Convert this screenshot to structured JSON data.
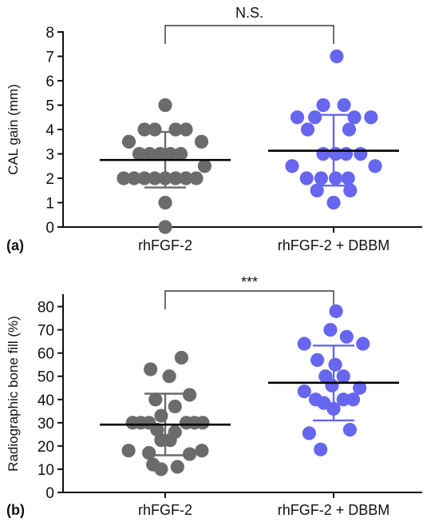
{
  "colors": {
    "rhfgf2": "#6b6b6b",
    "dbbm": "#6666ee",
    "mean": "#000000",
    "axis": "#111111"
  },
  "chart_data": [
    {
      "type": "scatter",
      "panel_label": "(a)",
      "ylabel": "CAL gain  (mm)",
      "ylim": [
        0,
        8
      ],
      "yticks": [
        0,
        1,
        2,
        3,
        4,
        5,
        6,
        7,
        8
      ],
      "categories": [
        "rhFGF-2",
        "rhFGF-2 + DBBM"
      ],
      "significance": "N.S.",
      "series": [
        {
          "category": "rhFGF-2",
          "color_key": "rhfgf2",
          "mean": 2.75,
          "sd_low": 1.62,
          "sd_high": 3.9,
          "points": [
            {
              "offset": 0,
              "y": 5
            },
            {
              "offset": -2,
              "y": 4
            },
            {
              "offset": -1,
              "y": 4
            },
            {
              "offset": 1,
              "y": 4
            },
            {
              "offset": 2,
              "y": 4
            },
            {
              "offset": -3.5,
              "y": 3.5
            },
            {
              "offset": 3.5,
              "y": 3.5
            },
            {
              "offset": -2.5,
              "y": 3
            },
            {
              "offset": -1.5,
              "y": 3
            },
            {
              "offset": -0.5,
              "y": 3
            },
            {
              "offset": 0.5,
              "y": 3
            },
            {
              "offset": 1.5,
              "y": 3
            },
            {
              "offset": 3.8,
              "y": 2.5
            },
            {
              "offset": -4,
              "y": 2
            },
            {
              "offset": -3,
              "y": 2
            },
            {
              "offset": -2,
              "y": 2
            },
            {
              "offset": -1,
              "y": 2
            },
            {
              "offset": 0,
              "y": 2
            },
            {
              "offset": 1,
              "y": 2
            },
            {
              "offset": 2,
              "y": 2
            },
            {
              "offset": 3,
              "y": 2
            },
            {
              "offset": 0,
              "y": 1
            },
            {
              "offset": 0,
              "y": 0
            }
          ]
        },
        {
          "category": "rhFGF-2 + DBBM",
          "color_key": "dbbm",
          "mean": 3.13,
          "sd_low": 1.7,
          "sd_high": 4.6,
          "points": [
            {
              "offset": 0.3,
              "y": 7
            },
            {
              "offset": -1,
              "y": 5
            },
            {
              "offset": 1,
              "y": 5
            },
            {
              "offset": -3.5,
              "y": 4.5
            },
            {
              "offset": -1.8,
              "y": 4.5
            },
            {
              "offset": 2,
              "y": 4.5
            },
            {
              "offset": 3.6,
              "y": 4.5
            },
            {
              "offset": -2.5,
              "y": 4
            },
            {
              "offset": 1.5,
              "y": 4
            },
            {
              "offset": -1,
              "y": 3
            },
            {
              "offset": 0.2,
              "y": 3
            },
            {
              "offset": 1.2,
              "y": 3
            },
            {
              "offset": 2.6,
              "y": 3
            },
            {
              "offset": -4,
              "y": 2.5
            },
            {
              "offset": 4,
              "y": 2.5
            },
            {
              "offset": -2.6,
              "y": 2
            },
            {
              "offset": -1.2,
              "y": 2
            },
            {
              "offset": 0.2,
              "y": 2
            },
            {
              "offset": 1.4,
              "y": 2
            },
            {
              "offset": -1.6,
              "y": 1.5
            },
            {
              "offset": 1.6,
              "y": 1.5
            },
            {
              "offset": 0,
              "y": 1
            }
          ]
        }
      ]
    },
    {
      "type": "scatter",
      "panel_label": "(b)",
      "ylabel": "Radiographic bone fill (%)",
      "ylim": [
        0,
        85
      ],
      "yticks": [
        0,
        10,
        20,
        30,
        40,
        50,
        60,
        70,
        80
      ],
      "categories": [
        "rhFGF-2",
        "rhFGF-2 + DBBM"
      ],
      "significance": "***",
      "series": [
        {
          "category": "rhFGF-2",
          "color_key": "rhfgf2",
          "mean": 29.2,
          "sd_low": 16,
          "sd_high": 42.5,
          "points": [
            {
              "offset": 2,
              "y": 58
            },
            {
              "offset": -1.8,
              "y": 53
            },
            {
              "offset": 0.5,
              "y": 50
            },
            {
              "offset": 3,
              "y": 42
            },
            {
              "offset": -1.2,
              "y": 40
            },
            {
              "offset": 1.2,
              "y": 37
            },
            {
              "offset": -0.5,
              "y": 33
            },
            {
              "offset": -4,
              "y": 30
            },
            {
              "offset": -3,
              "y": 30
            },
            {
              "offset": -2,
              "y": 30
            },
            {
              "offset": 2.6,
              "y": 30
            },
            {
              "offset": 3.6,
              "y": 30
            },
            {
              "offset": 4.6,
              "y": 30
            },
            {
              "offset": -1,
              "y": 27
            },
            {
              "offset": 1.2,
              "y": 26
            },
            {
              "offset": -0.5,
              "y": 22.5
            },
            {
              "offset": 0.6,
              "y": 22.5
            },
            {
              "offset": -4.5,
              "y": 18
            },
            {
              "offset": 4.5,
              "y": 18
            },
            {
              "offset": -2,
              "y": 17
            },
            {
              "offset": 3,
              "y": 16.5
            },
            {
              "offset": -1.5,
              "y": 12
            },
            {
              "offset": 1.5,
              "y": 11
            },
            {
              "offset": -0.5,
              "y": 10
            }
          ]
        },
        {
          "category": "rhFGF-2 + DBBM",
          "color_key": "dbbm",
          "mean": 47.2,
          "sd_low": 31,
          "sd_high": 63.2,
          "points": [
            {
              "offset": 0.3,
              "y": 78
            },
            {
              "offset": -0.4,
              "y": 70
            },
            {
              "offset": 1.6,
              "y": 67
            },
            {
              "offset": -3.6,
              "y": 64
            },
            {
              "offset": 3.6,
              "y": 64
            },
            {
              "offset": -2,
              "y": 57
            },
            {
              "offset": 0.2,
              "y": 55
            },
            {
              "offset": -1,
              "y": 50
            },
            {
              "offset": 1.2,
              "y": 50
            },
            {
              "offset": -0.2,
              "y": 46
            },
            {
              "offset": 3.2,
              "y": 45
            },
            {
              "offset": -3.6,
              "y": 43.5
            },
            {
              "offset": -2.2,
              "y": 40
            },
            {
              "offset": 1.2,
              "y": 40
            },
            {
              "offset": 2.4,
              "y": 40
            },
            {
              "offset": -1.2,
              "y": 38.5
            },
            {
              "offset": 0,
              "y": 36
            },
            {
              "offset": -3,
              "y": 25.5
            },
            {
              "offset": 2,
              "y": 27
            },
            {
              "offset": -1.6,
              "y": 18.5
            }
          ]
        }
      ]
    }
  ]
}
